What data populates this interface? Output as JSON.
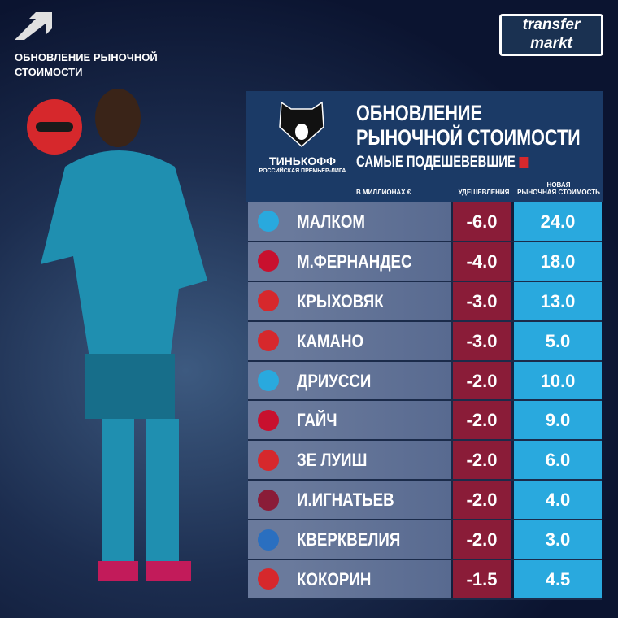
{
  "corner": {
    "label_line1": "ОБНОВЛЕНИЕ РЫНОЧНОЙ",
    "label_line2": "СТОИМОСТИ",
    "icon": "arrow-up-right-icon"
  },
  "brand": {
    "line1": "transfer",
    "line2": "markt"
  },
  "league": {
    "name": "ТИНЬКОФФ",
    "sub": "РОССИЙСКАЯ ПРЕМЬЕР-ЛИГА"
  },
  "header": {
    "title_line1": "ОБНОВЛЕНИЕ",
    "title_line2": "РЫНОЧНОЙ СТОИМОСТИ",
    "subtitle": "САМЫЕ ПОДЕШЕВЕВШИЕ",
    "units": "В МИЛЛИОНАХ €",
    "col_change": "УДЕШЕВЛЕНИЯ",
    "col_new_1": "НОВАЯ",
    "col_new_2": "РЫНОЧНАЯ СТОИМОСТЬ"
  },
  "colors": {
    "change": "#8a1c38",
    "new_value": "#29a9de",
    "panel": "#1b3a66",
    "minus": "#d6282c"
  },
  "rows": [
    {
      "club": "zenit",
      "club_color": "#29a9de",
      "player": "МАЛКОМ",
      "change": "-6.0",
      "value": "24.0"
    },
    {
      "club": "cska",
      "club_color": "#c8102e",
      "player": "М.ФЕРНАНДЕС",
      "change": "-4.0",
      "value": "18.0"
    },
    {
      "club": "lokomotiv",
      "club_color": "#d6282c",
      "player": "КРЫХОВЯК",
      "change": "-3.0",
      "value": "13.0"
    },
    {
      "club": "lokomotiv",
      "club_color": "#d6282c",
      "player": "КАМАНО",
      "change": "-3.0",
      "value": "5.0"
    },
    {
      "club": "zenit",
      "club_color": "#29a9de",
      "player": "ДРИУССИ",
      "change": "-2.0",
      "value": "10.0"
    },
    {
      "club": "cska",
      "club_color": "#c8102e",
      "player": "ГАЙЧ",
      "change": "-2.0",
      "value": "9.0"
    },
    {
      "club": "lokomotiv",
      "club_color": "#d6282c",
      "player": "ЗЕ ЛУИШ",
      "change": "-2.0",
      "value": "6.0"
    },
    {
      "club": "rubin",
      "club_color": "#8a1c38",
      "player": "И.ИГНАТЬЕВ",
      "change": "-2.0",
      "value": "4.0"
    },
    {
      "club": "rotor",
      "club_color": "#2a6fc0",
      "player": "КВЕРКВЕЛИЯ",
      "change": "-2.0",
      "value": "3.0"
    },
    {
      "club": "spartak",
      "club_color": "#d6282c",
      "player": "КОКОРИН",
      "change": "-1.5",
      "value": "4.5"
    }
  ]
}
